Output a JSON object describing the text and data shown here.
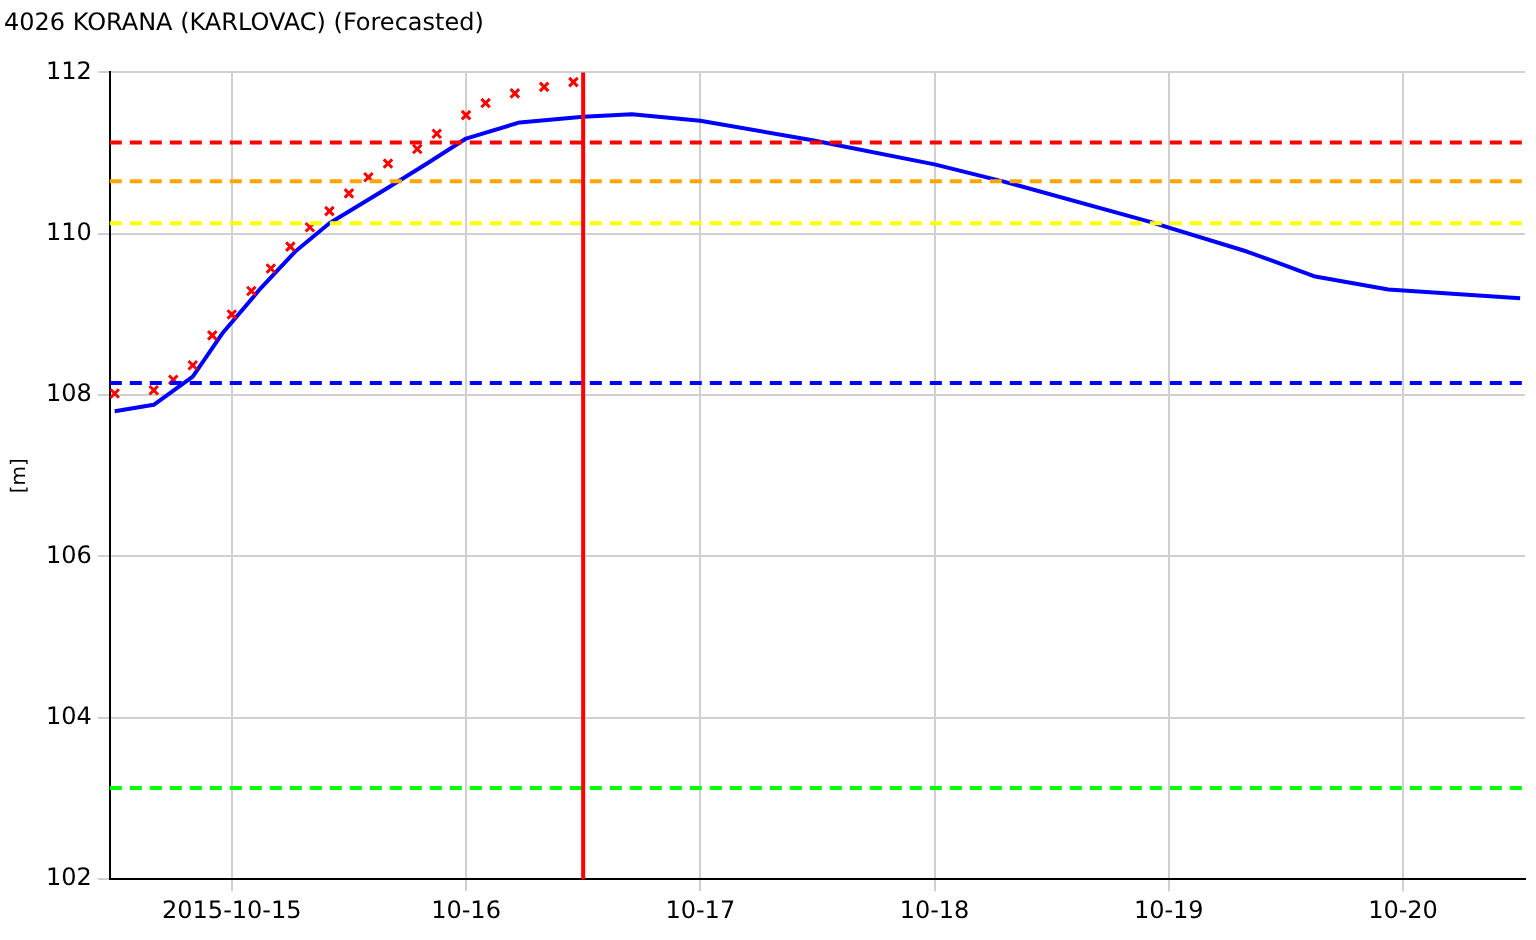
{
  "chart_data": {
    "type": "line",
    "title": "4026 KORANA (KARLOVAC) (Forecasted)",
    "ylabel": "[m]",
    "xlim": [
      "2015-10-14T11:30",
      "2015-10-20T12:30"
    ],
    "xticks": [
      {
        "value": "2015-10-15",
        "label": "2015-10-15"
      },
      {
        "value": "2015-10-16",
        "label": "10-16"
      },
      {
        "value": "2015-10-17",
        "label": "10-17"
      },
      {
        "value": "2015-10-18",
        "label": "10-18"
      },
      {
        "value": "2015-10-19",
        "label": "10-19"
      },
      {
        "value": "2015-10-20",
        "label": "10-20"
      }
    ],
    "ylim": [
      102,
      112
    ],
    "yticks": [
      102,
      104,
      106,
      108,
      110,
      112
    ],
    "grid": true,
    "legend": false,
    "series": [
      {
        "type": "scatter",
        "color": "#ff0000",
        "marker": "cross",
        "x": [
          "2015-10-14T12:00",
          "2015-10-14T16:00",
          "2015-10-14T18:00",
          "2015-10-14T20:00",
          "2015-10-14T22:00",
          "2015-10-15T00:00",
          "2015-10-15T02:00",
          "2015-10-15T04:00",
          "2015-10-15T06:00",
          "2015-10-15T08:00",
          "2015-10-15T10:00",
          "2015-10-15T12:00",
          "2015-10-15T14:00",
          "2015-10-15T16:00",
          "2015-10-15T19:00",
          "2015-10-15T21:00",
          "2015-10-16T00:00",
          "2015-10-16T02:00",
          "2015-10-16T05:00",
          "2015-10-16T08:00",
          "2015-10-16T11:00"
        ],
        "values": [
          108.02,
          108.06,
          108.19,
          108.37,
          108.74,
          109.0,
          109.29,
          109.57,
          109.84,
          110.08,
          110.28,
          110.5,
          110.7,
          110.87,
          111.05,
          111.24,
          111.47,
          111.62,
          111.74,
          111.82,
          111.88
        ]
      },
      {
        "type": "line",
        "color": "#0000ff",
        "marker": "none",
        "line_style": "solid",
        "x": [
          "2015-10-14T12:00",
          "2015-10-14T16:00",
          "2015-10-14T20:00",
          "2015-10-14T23:00",
          "2015-10-15T03:00",
          "2015-10-15T06:30",
          "2015-10-15T10:00",
          "2015-10-15T16:00",
          "2015-10-15T20:00",
          "2015-10-16T00:00",
          "2015-10-16T05:30",
          "2015-10-16T12:00",
          "2015-10-16T17:00",
          "2015-10-17T00:00",
          "2015-10-17T11:30",
          "2015-10-18T00:00",
          "2015-10-18T07:00",
          "2015-10-18T22:00",
          "2015-10-19T08:00",
          "2015-10-19T15:00",
          "2015-10-19T22:30",
          "2015-10-20T12:00"
        ],
        "values": [
          107.8,
          107.88,
          108.23,
          108.76,
          109.33,
          109.78,
          110.13,
          110.57,
          110.87,
          111.18,
          111.38,
          111.45,
          111.48,
          111.4,
          111.16,
          110.86,
          110.65,
          110.15,
          109.78,
          109.47,
          109.31,
          109.2
        ]
      }
    ],
    "ref_lines": [
      {
        "axis": "y",
        "value": 111.13,
        "color": "#ff0000",
        "line_style": "dashed"
      },
      {
        "axis": "y",
        "value": 110.65,
        "color": "#ffa500",
        "line_style": "dashed"
      },
      {
        "axis": "y",
        "value": 110.13,
        "color": "#ffff00",
        "line_style": "dashed"
      },
      {
        "axis": "y",
        "value": 108.15,
        "color": "#0000ff",
        "line_style": "dashed"
      },
      {
        "axis": "y",
        "value": 103.13,
        "color": "#00ff00",
        "line_style": "dashed"
      },
      {
        "axis": "x",
        "value": "2015-10-16T12:00",
        "color": "#ff0000",
        "line_style": "solid"
      }
    ]
  }
}
